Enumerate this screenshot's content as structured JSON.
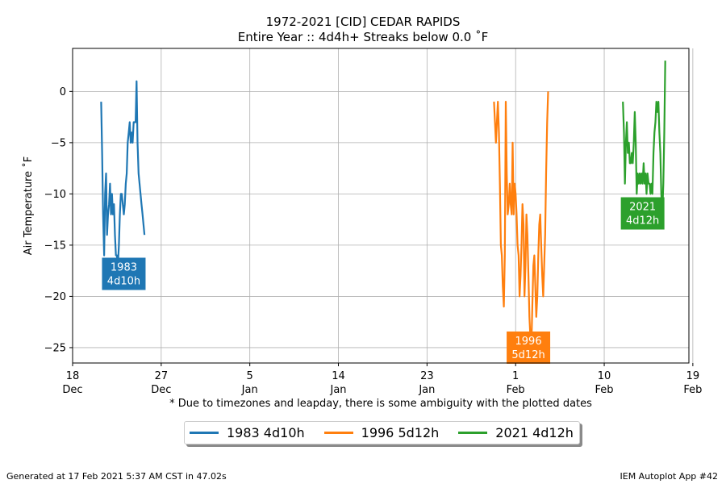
{
  "chart_data": {
    "type": "line",
    "title": "1972-2021 [CID] CEDAR RAPIDS",
    "subtitle": "Entire Year :: 4d4h+ Streaks below 0.0 ˚F",
    "xlabel": "* Due to timezones and leapday, there is some ambiguity with the plotted dates",
    "ylabel": "Air Temperature ˚F",
    "ylim": [
      -26.5,
      4.2
    ],
    "xlim_days_from_dec18": [
      0,
      62.6
    ],
    "y_ticks": [
      0,
      -5,
      -10,
      -15,
      -20,
      -25
    ],
    "y_tick_labels": [
      "0",
      "−5",
      "−10",
      "−15",
      "−20",
      "−25"
    ],
    "x_ticks": [
      {
        "day": 0,
        "label": "18",
        "label2": "Dec"
      },
      {
        "day": 9,
        "label": "27",
        "label2": "Dec"
      },
      {
        "day": 18,
        "label": "5",
        "label2": "Jan"
      },
      {
        "day": 27,
        "label": "14",
        "label2": "Jan"
      },
      {
        "day": 36,
        "label": "23",
        "label2": "Jan"
      },
      {
        "day": 45,
        "label": "1",
        "label2": "Feb"
      },
      {
        "day": 54,
        "label": "10",
        "label2": "Feb"
      },
      {
        "day": 63,
        "label": "19",
        "label2": "Feb"
      }
    ],
    "grid": true,
    "legend_position": "bottom-center",
    "series": [
      {
        "name": "1983 4d10h",
        "year_label": "1983",
        "duration_label": "4d10h",
        "color": "#1f77b4",
        "annotation": {
          "day": 5.2,
          "y": -17.8
        },
        "x": [
          2.9,
          3.0,
          3.1,
          3.2,
          3.3,
          3.4,
          3.5,
          3.6,
          3.7,
          3.8,
          3.9,
          4.0,
          4.1,
          4.2,
          4.3,
          4.4,
          4.5,
          4.6,
          4.7,
          4.8,
          4.9,
          5.0,
          5.1,
          5.2,
          5.3,
          5.4,
          5.5,
          5.6,
          5.7,
          5.8,
          5.9,
          6.0,
          6.1,
          6.2,
          6.3,
          6.4,
          6.5,
          6.6,
          6.7,
          6.8,
          6.9,
          7.0,
          7.1,
          7.2,
          7.3
        ],
        "y": [
          -1,
          -6,
          -12,
          -16,
          -10,
          -8,
          -14,
          -12,
          -11,
          -9,
          -12,
          -10,
          -12,
          -11,
          -14,
          -16,
          -16,
          -17,
          -15,
          -12,
          -10,
          -10,
          -11,
          -12,
          -11,
          -9,
          -8,
          -5,
          -4,
          -3,
          -5,
          -4,
          -5,
          -3,
          -3,
          -3,
          1,
          -5,
          -8,
          -9,
          -10,
          -11,
          -12,
          -13,
          -14
        ]
      },
      {
        "name": "1996 5d12h",
        "year_label": "1996",
        "duration_label": "5d12h",
        "color": "#ff7f0e",
        "annotation": {
          "day": 46.3,
          "y": -25.0
        },
        "x": [
          42.8,
          42.9,
          43.0,
          43.1,
          43.2,
          43.3,
          43.4,
          43.5,
          43.6,
          43.7,
          43.8,
          43.9,
          44.0,
          44.1,
          44.2,
          44.3,
          44.4,
          44.5,
          44.6,
          44.7,
          44.8,
          44.9,
          45.0,
          45.1,
          45.2,
          45.3,
          45.4,
          45.5,
          45.6,
          45.7,
          45.8,
          45.9,
          46.0,
          46.1,
          46.2,
          46.3,
          46.4,
          46.5,
          46.6,
          46.7,
          46.8,
          46.9,
          47.0,
          47.1,
          47.2,
          47.3,
          47.4,
          47.5,
          47.6,
          47.7,
          47.8,
          47.9,
          48.0,
          48.1,
          48.2,
          48.3
        ],
        "y": [
          -1,
          -3,
          -5,
          -3,
          -1,
          -4,
          -9,
          -15,
          -16,
          -19,
          -21,
          -16,
          -1,
          -8,
          -12,
          -11,
          -9,
          -11,
          -12,
          -5,
          -12,
          -9,
          -10,
          -12,
          -15,
          -16,
          -20,
          -18,
          -15,
          -11,
          -13,
          -20,
          -17,
          -12,
          -14,
          -18,
          -22,
          -24,
          -25,
          -21,
          -17,
          -16,
          -19,
          -22,
          -20,
          -16,
          -13,
          -12,
          -15,
          -18,
          -20,
          -17,
          -14,
          -8,
          -3,
          0
        ]
      },
      {
        "name": "2021 4d12h",
        "year_label": "2021",
        "duration_label": "4d12h",
        "color": "#2ca02c",
        "annotation": {
          "day": 57.9,
          "y": -11.9
        },
        "x": [
          55.9,
          56.0,
          56.1,
          56.2,
          56.3,
          56.4,
          56.5,
          56.6,
          56.7,
          56.8,
          56.9,
          57.0,
          57.1,
          57.2,
          57.3,
          57.4,
          57.5,
          57.6,
          57.7,
          57.8,
          57.9,
          58.0,
          58.1,
          58.2,
          58.3,
          58.4,
          58.5,
          58.6,
          58.7,
          58.8,
          58.9,
          59.0,
          59.1,
          59.2,
          59.3,
          59.4,
          59.5,
          59.6,
          59.7,
          59.8,
          59.9,
          60.0,
          60.1,
          60.2
        ],
        "y": [
          -1,
          -4,
          -9,
          -5,
          -3,
          -6,
          -5,
          -7,
          -7,
          -6,
          -7,
          -5,
          -2,
          -5,
          -10,
          -8,
          -9,
          -8,
          -9,
          -8,
          -9,
          -7,
          -9,
          -8,
          -10,
          -8,
          -9,
          -9,
          -10,
          -9,
          -10,
          -6,
          -4,
          -3,
          -1,
          -2,
          -1,
          -4,
          -6,
          -10,
          -12,
          -9,
          -4,
          3
        ]
      }
    ]
  },
  "footer": {
    "left": "Generated at 17 Feb 2021 5:37 AM CST in 47.02s",
    "right": "IEM Autoplot App #42"
  }
}
